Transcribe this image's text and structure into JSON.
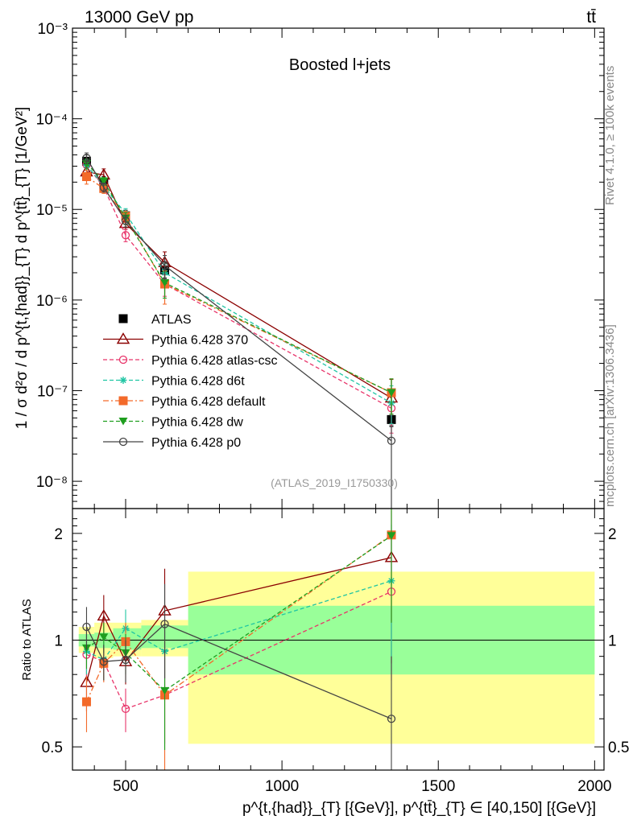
{
  "header": {
    "left": "13000 GeV pp",
    "right": "tt̄"
  },
  "side_labels": {
    "rivet": "Rivet 4.1.0, ≥ 100k events",
    "mcplots": "mcplots.cern.ch [arXiv:1306.3436]"
  },
  "chart_data": [
    {
      "type": "scatter",
      "panel": "main",
      "title": "Boosted l+jets",
      "analysis_id": "(ATLAS_2019_I1750330)",
      "ylabel": "1 / σ d²σ / d p^{t,{had}}_{T} d p^{tt̄}_{T} [1/GeV²]",
      "yscale": "log",
      "ylim": [
        5e-09,
        0.001
      ],
      "xlim": [
        330,
        2030
      ],
      "ytick_labels": [
        "10⁻⁸",
        "10⁻⁷",
        "10⁻⁶",
        "10⁻⁵",
        "10⁻⁴",
        "10⁻³"
      ],
      "x": [
        375,
        430,
        500,
        625,
        1350
      ],
      "bin_edges": [
        350,
        400,
        460,
        550,
        700,
        2000
      ],
      "series": [
        {
          "name": "ATLAS",
          "color": "#000000",
          "marker": "square-filled",
          "line": "none",
          "values": [
            3.4e-05,
            2e-05,
            8.5e-06,
            2.15e-06,
            4.8e-08
          ],
          "err_lo": [
            5e-06,
            3e-06,
            1.3e-06,
            4e-07,
            7e-09
          ],
          "err_hi": [
            6e-06,
            3e-06,
            1.3e-06,
            5e-07,
            7e-09
          ]
        },
        {
          "name": "Pythia 6.428 370",
          "color": "#8b0000",
          "marker": "triangle-open",
          "line": "solid",
          "values": [
            2.6e-05,
            2.4e-05,
            7e-06,
            2.6e-06,
            8.3e-08
          ],
          "err_lo": [
            4e-06,
            3e-06,
            1e-06,
            7e-07,
            4e-08
          ],
          "err_hi": [
            4e-06,
            4e-06,
            1e-06,
            8e-07,
            5e-08
          ]
        },
        {
          "name": "Pythia 6.428 atlas-csc",
          "color": "#e8346a",
          "marker": "circle-open",
          "line": "dashed",
          "values": [
            3.1e-05,
            1.75e-05,
            5.2e-06,
            1.5e-06,
            6.4e-08
          ],
          "err_lo": [
            4e-06,
            2e-06,
            8e-07,
            4e-07,
            3e-08
          ],
          "err_hi": [
            4e-06,
            2e-06,
            8e-07,
            4e-07,
            4e-08
          ]
        },
        {
          "name": "Pythia 6.428 d6t",
          "color": "#1ec5a3",
          "marker": "star",
          "line": "dashed",
          "values": [
            3.1e-05,
            1.8e-05,
            9e-06,
            2e-06,
            7.3e-08
          ],
          "err_lo": [
            4e-06,
            2e-06,
            1.2e-06,
            5e-07,
            3e-08
          ],
          "err_hi": [
            4e-06,
            2e-06,
            1.2e-06,
            5e-07,
            4e-08
          ]
        },
        {
          "name": "Pythia 6.428 default",
          "color": "#f36a2a",
          "marker": "square-filled",
          "line": "dashdot",
          "values": [
            2.3e-05,
            1.7e-05,
            8.4e-06,
            1.5e-06,
            9.5e-08
          ],
          "err_lo": [
            4e-06,
            2e-06,
            1.2e-06,
            6e-07,
            4e-08
          ],
          "err_hi": [
            4e-06,
            2e-06,
            1.2e-06,
            6e-07,
            4e-08
          ]
        },
        {
          "name": "Pythia 6.428 dw",
          "color": "#1f9e1f",
          "marker": "triangle-down-filled",
          "line": "dashed",
          "values": [
            3.2e-05,
            2.05e-05,
            8e-06,
            1.55e-06,
            9.5e-08
          ],
          "err_lo": [
            4e-06,
            2e-06,
            1.2e-06,
            5e-07,
            4e-08
          ],
          "err_hi": [
            4e-06,
            2e-06,
            1.2e-06,
            5e-07,
            4e-08
          ]
        },
        {
          "name": "Pythia 6.428 p0",
          "color": "#444444",
          "marker": "circle-open",
          "line": "solid",
          "values": [
            3.7e-05,
            1.75e-05,
            7.5e-06,
            2.4e-06,
            2.8e-08
          ],
          "err_lo": [
            5e-06,
            2e-06,
            1.1e-06,
            7e-07,
            2.8e-08
          ],
          "err_hi": [
            5e-06,
            2e-06,
            1.1e-06,
            7e-07,
            1.2e-08
          ]
        }
      ]
    },
    {
      "type": "scatter",
      "panel": "ratio",
      "ylabel": "Ratio to ATLAS",
      "xlabel": "p^{t,{had}}_{T} [{GeV}], p^{tt̄}_{T} ∈ [40,150] [{GeV}]",
      "yscale": "log",
      "ylim": [
        0.43,
        2.35
      ],
      "xlim": [
        330,
        2030
      ],
      "yticks": [
        0.5,
        1,
        2
      ],
      "ytick_labels": [
        "0.5",
        "1",
        "2"
      ],
      "xticks": [
        500,
        1000,
        1500,
        2000
      ],
      "xtick_labels": [
        "500",
        "1000",
        "1500",
        "2000"
      ],
      "bands": {
        "bin_edges": [
          350,
          400,
          460,
          550,
          700,
          2000
        ],
        "inner": [
          [
            0.96,
            1.04
          ],
          [
            0.95,
            1.05
          ],
          [
            0.94,
            1.08
          ],
          [
            0.95,
            1.1
          ],
          [
            0.8,
            1.25
          ]
        ],
        "outer": [
          [
            0.92,
            1.09
          ],
          [
            0.89,
            1.12
          ],
          [
            0.9,
            1.12
          ],
          [
            0.9,
            1.14
          ],
          [
            0.51,
            1.56
          ]
        ],
        "inner_color": "#99ff99",
        "outer_color": "#ffff99"
      },
      "series": [
        {
          "name": "Pythia 6.428 370",
          "color": "#8b0000",
          "values": [
            0.76,
            1.17,
            0.87,
            1.21,
            1.71
          ],
          "err_lo": [
            0.13,
            0.17,
            0.12,
            0.3,
            0.85
          ],
          "err_hi": [
            0.13,
            0.17,
            0.12,
            0.38,
            0.85
          ]
        },
        {
          "name": "Pythia 6.428 atlas-csc",
          "color": "#e8346a",
          "values": [
            0.91,
            0.87,
            0.64,
            0.7,
            1.37
          ],
          "err_lo": [
            0.12,
            0.1,
            0.09,
            0.19,
            0.6
          ],
          "err_hi": [
            0.12,
            0.1,
            0.09,
            0.19,
            0.6
          ]
        },
        {
          "name": "Pythia 6.428 d6t",
          "color": "#1ec5a3",
          "values": [
            0.93,
            0.88,
            1.08,
            0.93,
            1.47
          ],
          "err_lo": [
            0.13,
            0.11,
            0.14,
            0.22,
            0.65
          ],
          "err_hi": [
            0.13,
            0.11,
            0.14,
            0.22,
            0.65
          ]
        },
        {
          "name": "Pythia 6.428 default",
          "color": "#f36a2a",
          "values": [
            0.67,
            0.86,
            0.99,
            0.7,
            1.98
          ],
          "err_lo": [
            0.12,
            0.1,
            0.13,
            0.3,
            0.85
          ],
          "err_hi": [
            0.12,
            0.1,
            0.13,
            0.3,
            0.85
          ]
        },
        {
          "name": "Pythia 6.428 dw",
          "color": "#1f9e1f",
          "values": [
            0.95,
            1.02,
            0.92,
            0.72,
            1.97
          ],
          "err_lo": [
            0.12,
            0.1,
            0.12,
            0.23,
            0.85
          ],
          "err_hi": [
            0.12,
            0.1,
            0.12,
            0.23,
            0.85
          ]
        },
        {
          "name": "Pythia 6.428 p0",
          "color": "#444444",
          "values": [
            1.09,
            0.87,
            0.88,
            1.11,
            0.6
          ],
          "err_lo": [
            0.15,
            0.1,
            0.12,
            0.33,
            0.6
          ],
          "err_hi": [
            0.15,
            0.1,
            0.12,
            0.33,
            0.3
          ]
        }
      ]
    }
  ]
}
